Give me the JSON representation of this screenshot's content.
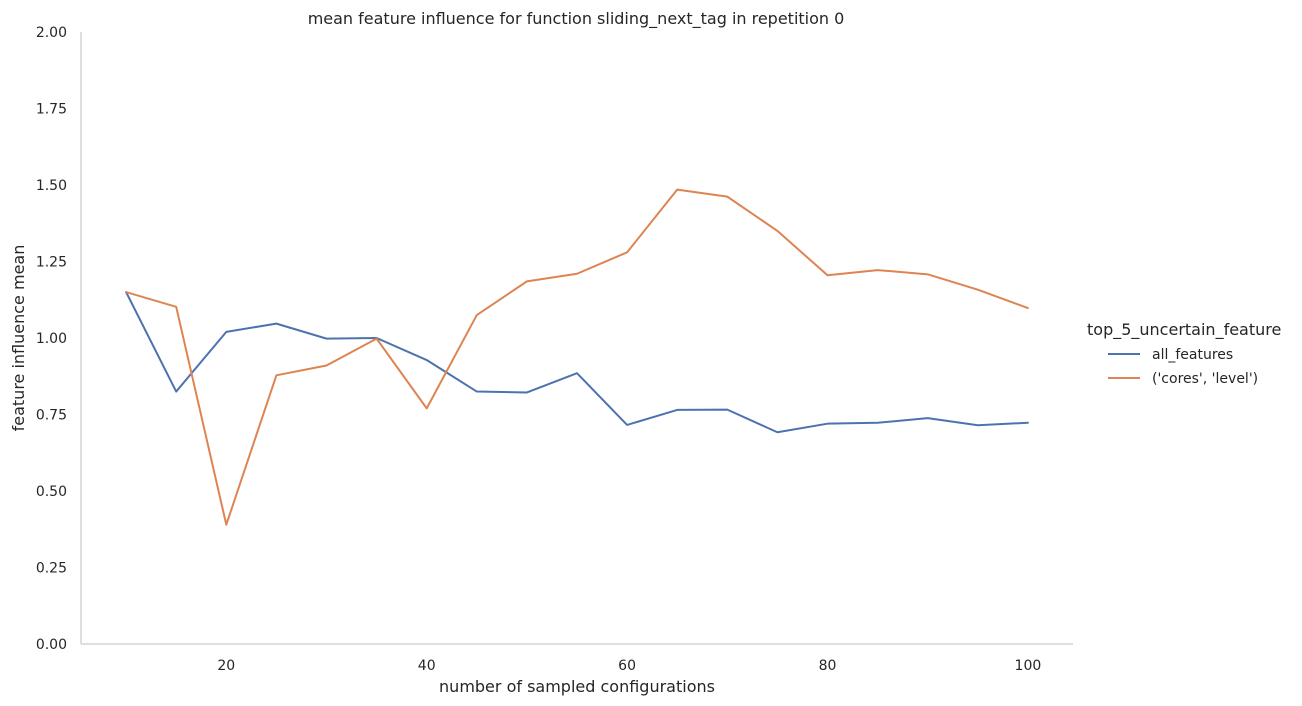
{
  "chart_data": {
    "type": "line",
    "title": "mean feature influence for function sliding_next_tag in repetition 0",
    "xlabel": "number of sampled configurations",
    "ylabel": "feature influence mean",
    "xlim": [
      5.5,
      104.5
    ],
    "ylim": [
      0,
      2
    ],
    "xticks": [
      20,
      40,
      60,
      80,
      100
    ],
    "yticks": [
      0,
      0.25,
      0.5,
      0.75,
      1.0,
      1.25,
      1.5,
      1.75,
      2.0
    ],
    "ytick_labels": [
      "0.00",
      "0.25",
      "0.50",
      "0.75",
      "1.00",
      "1.25",
      "1.50",
      "1.75",
      "2.00"
    ],
    "grid": false,
    "legend": {
      "title": "top_5_uncertain_feature",
      "position": "right"
    },
    "x": [
      10,
      15,
      20,
      25,
      30,
      35,
      40,
      45,
      50,
      55,
      60,
      65,
      70,
      75,
      80,
      85,
      90,
      95,
      100
    ],
    "series": [
      {
        "name": "all_features",
        "color": "#4c72b0",
        "values": [
          1.15,
          0.825,
          1.02,
          1.047,
          0.998,
          1.0,
          0.928,
          0.825,
          0.822,
          0.885,
          0.716,
          0.765,
          0.766,
          0.692,
          0.72,
          0.723,
          0.738,
          0.715,
          0.723
        ]
      },
      {
        "name": "('cores', 'level')",
        "color": "#dd8452",
        "values": [
          1.15,
          1.102,
          0.39,
          0.878,
          0.91,
          0.998,
          0.77,
          1.075,
          1.185,
          1.21,
          1.28,
          1.485,
          1.462,
          1.35,
          1.205,
          1.222,
          1.208,
          1.158,
          1.098
        ]
      }
    ]
  }
}
